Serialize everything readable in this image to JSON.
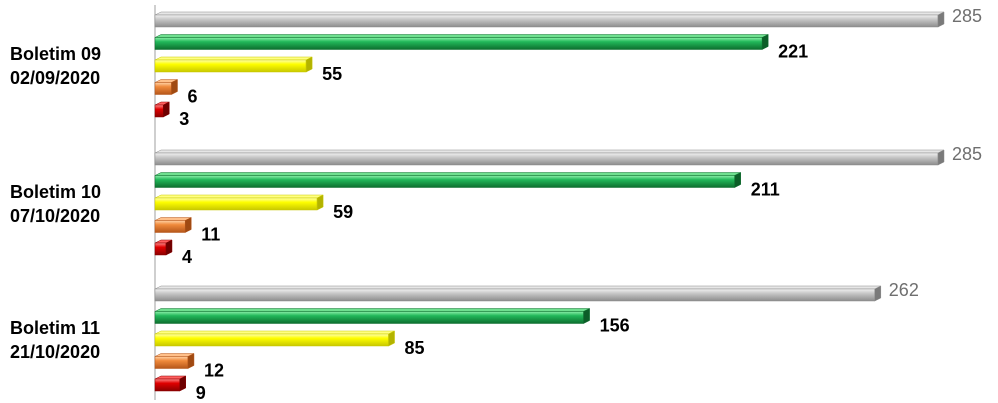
{
  "colors": {
    "gray": "#c4c4c4",
    "green": "#22b85a",
    "yellow": "#fefe00",
    "orange": "#f08a3c",
    "red": "#e00000",
    "axis": "#bfbfbf",
    "label_dark": "#000000",
    "label_gray": "#6f6f6f"
  },
  "chart_data": {
    "type": "bar",
    "orientation": "horizontal",
    "xlim": [
      0,
      285
    ],
    "gridlines": false,
    "legend": "none",
    "categories": [
      {
        "line1": "Boletim 09",
        "line2": "02/09/2020",
        "values": [
          285,
          221,
          55,
          6,
          3
        ]
      },
      {
        "line1": "Boletim 10",
        "line2": "07/10/2020",
        "values": [
          285,
          211,
          59,
          11,
          4
        ]
      },
      {
        "line1": "Boletim 11",
        "line2": "21/10/2020",
        "values": [
          262,
          156,
          85,
          12,
          9
        ]
      }
    ],
    "series_colors": [
      "gray",
      "green",
      "yellow",
      "orange",
      "red"
    ]
  }
}
